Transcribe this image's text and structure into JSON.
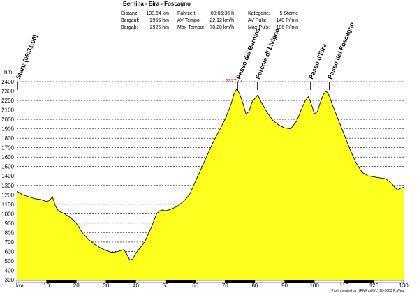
{
  "chart_data": {
    "type": "area",
    "title": "Bernina - Eira - Foscagno",
    "stats": [
      [
        {
          "label": "Distanz:",
          "value": "130,64 km"
        },
        {
          "label": "Fahrzeit:",
          "value": "08:06:36 h"
        },
        {
          "label": "Kategorie:",
          "value": "5 Sterne"
        }
      ],
      [
        {
          "label": "Bergauf:",
          "value": "2965 hm"
        },
        {
          "label": "AV-Tempo:",
          "value": "22,12 km/h"
        },
        {
          "label": "AV-Puls:",
          "value": "140 P/min"
        }
      ],
      [
        {
          "label": "Bergab:",
          "value": "2926 hm"
        },
        {
          "label": "Max-Tempo:",
          "value": "70,20 km/h"
        },
        {
          "label": "Max-Puls:",
          "value": "186 P/min"
        }
      ]
    ],
    "xlabel": "km",
    "ylabel": "hm",
    "xlim": [
      0,
      130
    ],
    "ylim": [
      300,
      2400
    ],
    "x_ticks": [
      10,
      20,
      30,
      40,
      50,
      60,
      70,
      80,
      90,
      100,
      110,
      120,
      130
    ],
    "y_ticks": [
      300,
      400,
      500,
      600,
      700,
      800,
      900,
      1000,
      1100,
      1200,
      1300,
      1400,
      1500,
      1600,
      1700,
      1800,
      1900,
      2000,
      2100,
      2200,
      2300,
      2400
    ],
    "grid": true,
    "fill_color": "#ffff1e",
    "line_color": "#000000",
    "x": [
      0,
      2,
      4,
      6,
      8,
      10,
      11,
      12,
      13,
      14,
      16,
      18,
      20,
      22,
      24,
      26,
      28,
      30,
      32,
      34,
      36,
      37,
      38,
      39,
      40,
      41,
      43,
      45,
      47,
      48,
      49,
      50,
      52,
      54,
      56,
      58,
      60,
      62,
      64,
      66,
      68,
      70,
      72,
      73,
      74,
      75,
      76,
      77,
      78,
      79,
      80,
      81,
      82,
      84,
      86,
      88,
      90,
      92,
      94,
      96,
      97,
      98,
      99,
      100,
      101,
      102,
      103,
      104,
      105,
      106,
      108,
      110,
      112,
      114,
      116,
      118,
      120,
      122,
      124,
      126,
      127,
      128,
      129,
      130
    ],
    "y": [
      1240,
      1200,
      1180,
      1160,
      1150,
      1130,
      1140,
      1180,
      1080,
      1030,
      1000,
      960,
      900,
      800,
      730,
      680,
      640,
      610,
      590,
      600,
      620,
      570,
      510,
      520,
      580,
      620,
      700,
      840,
      1000,
      1030,
      1040,
      1030,
      1050,
      1080,
      1130,
      1200,
      1340,
      1480,
      1620,
      1760,
      1880,
      2000,
      2160,
      2270,
      2327,
      2260,
      2170,
      2060,
      2080,
      2180,
      2220,
      2260,
      2190,
      2080,
      1990,
      1940,
      1910,
      1900,
      1980,
      2130,
      2200,
      2240,
      2160,
      2060,
      2080,
      2180,
      2260,
      2300,
      2250,
      2160,
      2000,
      1840,
      1680,
      1540,
      1440,
      1400,
      1390,
      1380,
      1370,
      1320,
      1280,
      1250,
      1270,
      1280
    ],
    "markers": [
      {
        "label": "Start: (09:31:00)",
        "x": 0.3
      },
      {
        "label": "Passo del Bernina",
        "x": 74.3
      },
      {
        "label": "Forcola di Livigno",
        "x": 80.8
      },
      {
        "label": "Passo d'Eira",
        "x": 98.7
      },
      {
        "label": "Passo del Foscagno",
        "x": 105
      }
    ],
    "max_label": "2327 m",
    "max_value": 2327,
    "max_x": 74.3,
    "credit": "Profil created by HRMProfil (c) 98-2003 R.Weiz"
  }
}
